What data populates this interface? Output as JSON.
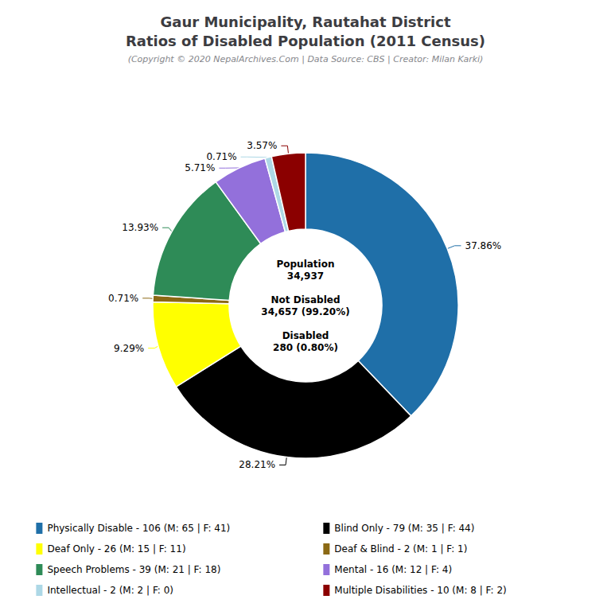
{
  "chart_data": {
    "type": "donut",
    "title": "Gaur Municipality, Rautahat District\nRatios of Disabled Population (2011 Census)",
    "subtitle": "(Copyright © 2020 NepalArchives.Com | Data Source: CBS | Creator: Milan Karki)",
    "categories": [
      "Physically Disable - 106 (M: 65 | F: 41)",
      "Blind Only - 79 (M: 35 | F: 44)",
      "Deaf Only - 26 (M: 15 | F: 11)",
      "Deaf & Blind - 2 (M: 1 | F: 1)",
      "Speech Problems - 39 (M: 21 | F: 18)",
      "Mental - 16 (M: 12 | F: 4)",
      "Intellectual - 2 (M: 2 | F: 0)",
      "Multiple Disabilities - 10 (M: 8 | F: 2)"
    ],
    "values": [
      37.86,
      28.21,
      9.29,
      0.71,
      13.93,
      5.71,
      0.71,
      3.57
    ],
    "value_labels": [
      "37.86%",
      "28.21%",
      "9.29%",
      "0.71%",
      "13.93%",
      "5.71%",
      "0.71%",
      "3.57%"
    ],
    "colors": [
      "#1f6fa8",
      "#000000",
      "#ffff00",
      "#8b6914",
      "#2e8b57",
      "#9370db",
      "#add8e6",
      "#8b0000"
    ],
    "data_labels": true,
    "annotations": [
      "Population\n34,937\n\nNot Disabled\n34,657 (99.20%)\n\nDisabled\n280 (0.80%)"
    ],
    "legend": "bottom"
  }
}
